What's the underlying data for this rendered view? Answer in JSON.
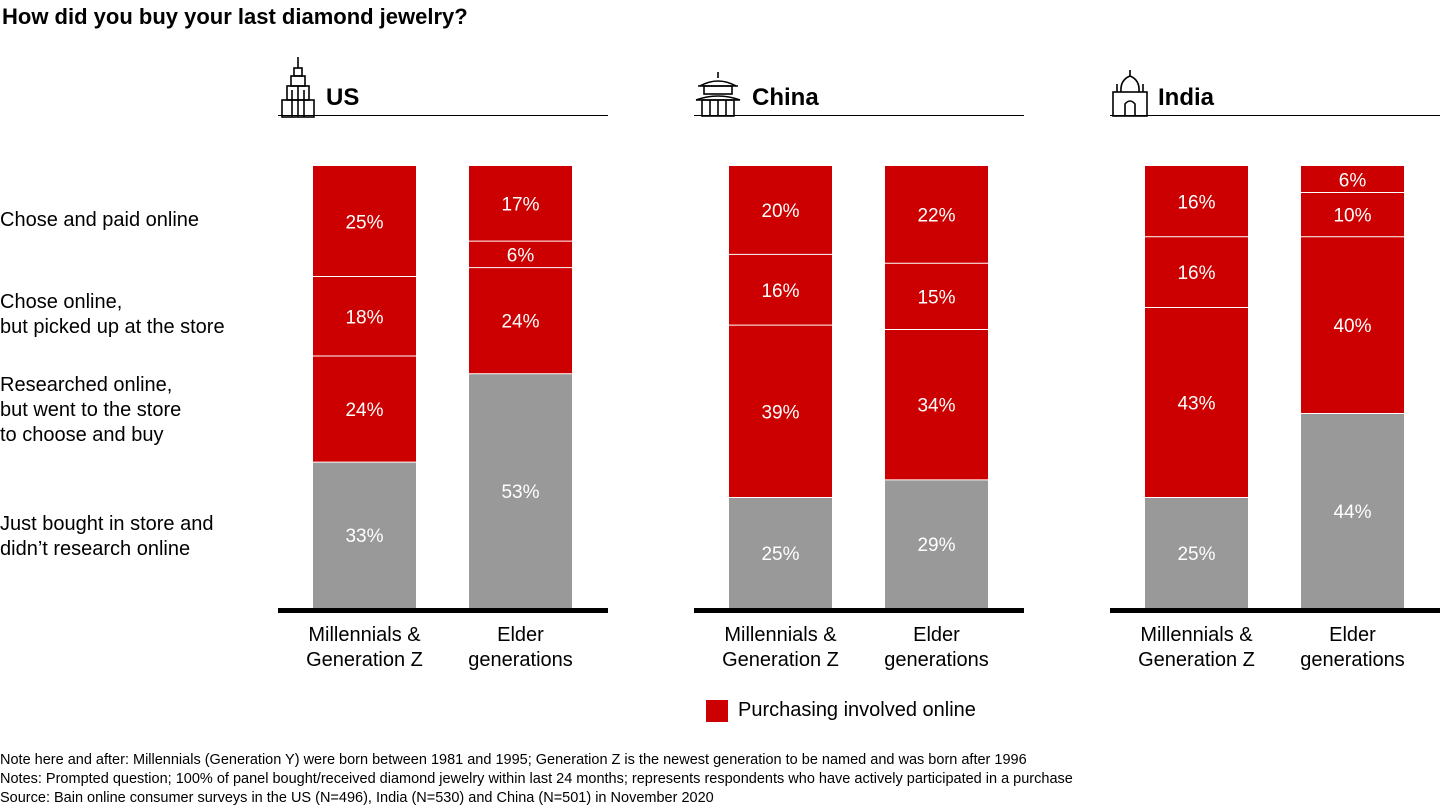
{
  "title": "How did you buy your last diamond jewelry?",
  "row_labels": [
    "Chose and paid online",
    "Chose online,\nbut picked up at the store",
    "Researched online,\nbut went to the store\nto choose and buy",
    "Just bought in store and\ndidn’t research online"
  ],
  "legend": {
    "label": "Purchasing involved online",
    "color": "#cc0000"
  },
  "colors": {
    "online": "#cc0000",
    "store": "#999999",
    "baseline": "#000000"
  },
  "footnotes": [
    "Note here and after: Millennials (Generation Y) were born between 1981 and 1995; Generation Z is the newest generation to be named and was born after 1996",
    "Notes: Prompted question; 100% of panel bought/received diamond jewelry within last 24 months; represents respondents who have actively participated in a purchase",
    "Source: Bain online consumer surveys in the US (N=496), India (N=530) and China (N=501) in November 2020"
  ],
  "panels": [
    {
      "title": "US",
      "icon": "skyscraper-icon",
      "categories": [
        "Millennials &\nGeneration Z",
        "Elder\ngenerations"
      ]
    },
    {
      "title": "China",
      "icon": "pagoda-icon",
      "categories": [
        "Millennials &\nGeneration Z",
        "Elder\ngenerations"
      ]
    },
    {
      "title": "India",
      "icon": "taj-mahal-icon",
      "categories": [
        "Millennials &\nGeneration Z",
        "Elder\ngenerations"
      ]
    }
  ],
  "chart_data": {
    "type": "bar",
    "stacked": true,
    "normalized": true,
    "segment_order": [
      "Chose and paid online",
      "Chose online, but picked up at the store",
      "Researched online, but went to the store to choose and buy",
      "Just bought in store and didn’t research online"
    ],
    "groups": [
      {
        "name": "US",
        "bars": [
          {
            "category": "Millennials & Generation Z",
            "values": [
              25,
              18,
              24,
              33
            ]
          },
          {
            "category": "Elder generations",
            "values": [
              17,
              6,
              24,
              53
            ]
          }
        ]
      },
      {
        "name": "China",
        "bars": [
          {
            "category": "Millennials & Generation Z",
            "values": [
              20,
              16,
              39,
              25
            ]
          },
          {
            "category": "Elder generations",
            "values": [
              22,
              15,
              34,
              29
            ]
          }
        ]
      },
      {
        "name": "India",
        "bars": [
          {
            "category": "Millennials & Generation Z",
            "values": [
              16,
              16,
              43,
              25
            ]
          },
          {
            "category": "Elder generations",
            "values": [
              6,
              10,
              40,
              44
            ]
          }
        ]
      }
    ],
    "value_suffix": "%",
    "ylim": [
      0,
      100
    ],
    "grid": false
  }
}
